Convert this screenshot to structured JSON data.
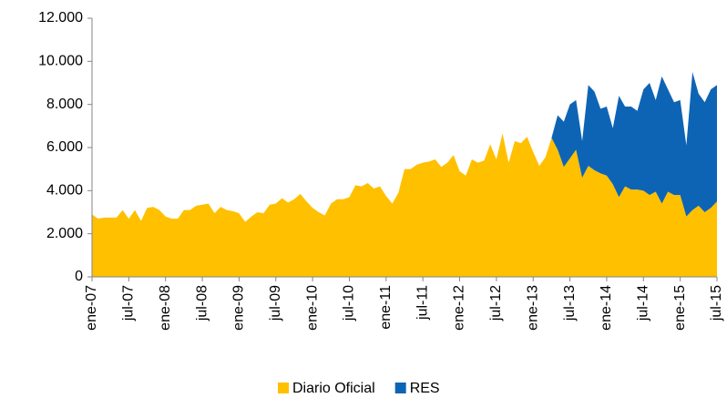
{
  "chart_data": {
    "type": "stacked-area",
    "categories": [
      "ene-07",
      null,
      null,
      null,
      null,
      null,
      "jul-07",
      null,
      null,
      null,
      null,
      null,
      "ene-08",
      null,
      null,
      null,
      null,
      null,
      "jul-08",
      null,
      null,
      null,
      null,
      null,
      "ene-09",
      null,
      null,
      null,
      null,
      null,
      "jul-09",
      null,
      null,
      null,
      null,
      null,
      "ene-10",
      null,
      null,
      null,
      null,
      null,
      "jul-10",
      null,
      null,
      null,
      null,
      null,
      "ene-11",
      null,
      null,
      null,
      null,
      null,
      "jul-11",
      null,
      null,
      null,
      null,
      null,
      "ene-12",
      null,
      null,
      null,
      null,
      null,
      "jul-12",
      null,
      null,
      null,
      null,
      null,
      "ene-13",
      null,
      null,
      null,
      null,
      null,
      "jul-13",
      null,
      null,
      null,
      null,
      null,
      "ene-14",
      null,
      null,
      null,
      null,
      null,
      "jul-14",
      null,
      null,
      null,
      null,
      null,
      "ene-15",
      null,
      null,
      null,
      null,
      null,
      "jul-15"
    ],
    "series": [
      {
        "name": "Diario Oficial",
        "color": "#ffc000",
        "values": [
          2900,
          2700,
          2750,
          2750,
          2750,
          3100,
          2700,
          3100,
          2600,
          3200,
          3250,
          3100,
          2800,
          2700,
          2700,
          3100,
          3100,
          3300,
          3350,
          3400,
          2950,
          3250,
          3100,
          3050,
          2950,
          2550,
          2800,
          3000,
          2950,
          3350,
          3400,
          3650,
          3450,
          3600,
          3850,
          3500,
          3200,
          3000,
          2850,
          3400,
          3600,
          3600,
          3700,
          4250,
          4200,
          4350,
          4100,
          4200,
          3750,
          3400,
          3900,
          5000,
          5000,
          5200,
          5300,
          5350,
          5450,
          5100,
          5300,
          5650,
          4900,
          4700,
          5450,
          5300,
          5400,
          6150,
          5450,
          6650,
          5300,
          6300,
          6200,
          6500,
          5800,
          5150,
          5550,
          6450,
          5900,
          5100,
          5500,
          5900,
          4600,
          5150,
          4950,
          4800,
          4700,
          4300,
          3700,
          4200,
          4050,
          4050,
          4000,
          3800,
          3950,
          3400,
          3950,
          3800,
          3800,
          2800,
          3100,
          3300,
          3000,
          3200,
          3500
        ]
      },
      {
        "name": "RES",
        "color": "#0e64b4",
        "values": [
          0,
          0,
          0,
          0,
          0,
          0,
          0,
          0,
          0,
          0,
          0,
          0,
          0,
          0,
          0,
          0,
          0,
          0,
          0,
          0,
          0,
          0,
          0,
          0,
          0,
          0,
          0,
          0,
          0,
          0,
          0,
          0,
          0,
          0,
          0,
          0,
          0,
          0,
          0,
          0,
          0,
          0,
          0,
          0,
          0,
          0,
          0,
          0,
          0,
          0,
          0,
          0,
          0,
          0,
          0,
          0,
          0,
          0,
          0,
          0,
          0,
          0,
          0,
          0,
          0,
          0,
          0,
          0,
          0,
          0,
          0,
          0,
          0,
          0,
          0,
          0,
          1600,
          2100,
          2500,
          2300,
          1700,
          3750,
          3650,
          3000,
          3200,
          2600,
          4700,
          3700,
          3850,
          3650,
          4700,
          5200,
          4250,
          5900,
          4750,
          4300,
          4400,
          3300,
          6400,
          5200,
          5100,
          5500,
          5400
        ]
      }
    ],
    "ylim": [
      0,
      12000
    ],
    "yticks": [
      0,
      {
        "value": 2000,
        "label": "2.000"
      },
      {
        "value": 4000,
        "label": "4.000"
      },
      {
        "value": 6000,
        "label": "6.000"
      },
      {
        "value": 8000,
        "label": "8.000"
      },
      {
        "value": 10000,
        "label": "10.000"
      },
      {
        "value": 12000,
        "label": "12.000"
      }
    ],
    "legend": "bottom"
  }
}
